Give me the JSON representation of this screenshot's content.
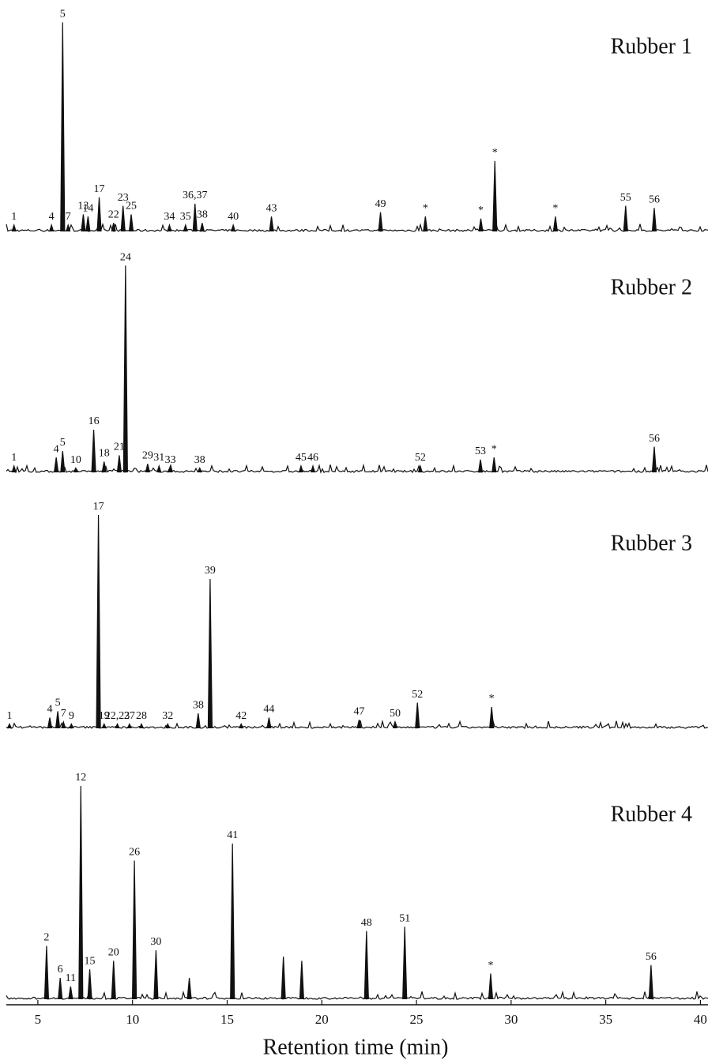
{
  "chart_data": {
    "type": "chromatogram",
    "x_label": "Retention time (min)",
    "xlim": [
      3,
      40.4
    ],
    "xticks": [
      5,
      10,
      15,
      20,
      25,
      30,
      35,
      40
    ],
    "ylim": [
      0,
      100
    ],
    "panels": [
      {
        "title": "Rubber 1",
        "x": [
          3.74,
          5.72,
          6.31,
          6.6,
          7.4,
          7.65,
          8.24,
          9.0,
          9.5,
          9.93,
          11.95,
          12.8,
          13.3,
          13.68,
          15.32,
          17.34,
          23.1,
          25.47,
          28.4,
          29.14,
          32.34,
          36.05,
          37.56
        ],
        "values": [
          3,
          3,
          98,
          3,
          8,
          7,
          16,
          4,
          12,
          8,
          3,
          3,
          13,
          4,
          3,
          7,
          9,
          7,
          6,
          33,
          7,
          12,
          11
        ],
        "labels": [
          "1",
          "4",
          "5",
          "7",
          "13",
          "14",
          "17",
          "22",
          "23",
          "25",
          "34",
          "35",
          "36,37",
          "38",
          "40",
          "43",
          "49",
          "*",
          "*",
          "*",
          "*",
          "55",
          "56"
        ]
      },
      {
        "title": "Rubber 2",
        "x": [
          3.74,
          5.97,
          6.31,
          7.0,
          7.95,
          8.5,
          9.3,
          9.63,
          10.8,
          11.4,
          12.0,
          13.55,
          18.9,
          19.53,
          25.2,
          28.38,
          29.1,
          37.56
        ],
        "values": [
          3,
          7,
          10,
          2,
          20,
          5,
          8,
          97,
          4,
          3,
          2,
          2,
          3,
          3,
          3,
          6,
          7,
          12
        ],
        "labels": [
          "1",
          "4",
          "5",
          "10",
          "16",
          "18",
          "21",
          "24",
          "29",
          "31",
          "33",
          "38",
          "45",
          "46",
          "52",
          "53",
          "*",
          "56"
        ]
      },
      {
        "title": "Rubber 3",
        "x": [
          3.5,
          5.63,
          6.05,
          6.35,
          6.77,
          8.2,
          8.5,
          9.2,
          9.84,
          10.47,
          11.86,
          13.47,
          14.1,
          15.74,
          17.21,
          21.97,
          23.87,
          25.05,
          28.97
        ],
        "values": [
          2,
          5,
          8,
          3,
          2,
          100,
          2,
          2,
          2,
          2,
          2,
          7,
          70,
          2,
          5,
          4,
          3,
          12,
          10
        ],
        "labels": [
          "1",
          "4",
          "5",
          "7",
          "9",
          "17",
          "19",
          "22,23",
          "27",
          "28",
          "32",
          "38",
          "39",
          "42",
          "44",
          "47",
          "50",
          "52",
          "*"
        ]
      },
      {
        "title": "Rubber 4",
        "x": [
          5.46,
          6.18,
          6.73,
          7.27,
          7.74,
          9.0,
          10.1,
          11.24,
          13.0,
          15.28,
          17.97,
          18.94,
          22.36,
          24.38,
          28.92,
          37.39
        ],
        "values": [
          25,
          10,
          6,
          100,
          14,
          18,
          65,
          23,
          10,
          73,
          20,
          18,
          32,
          34,
          12,
          16
        ],
        "labels": [
          "2",
          "6",
          "11",
          "12",
          "15",
          "20",
          "26",
          "30",
          null,
          "41",
          null,
          null,
          "48",
          "51",
          "*",
          "56"
        ]
      }
    ]
  }
}
